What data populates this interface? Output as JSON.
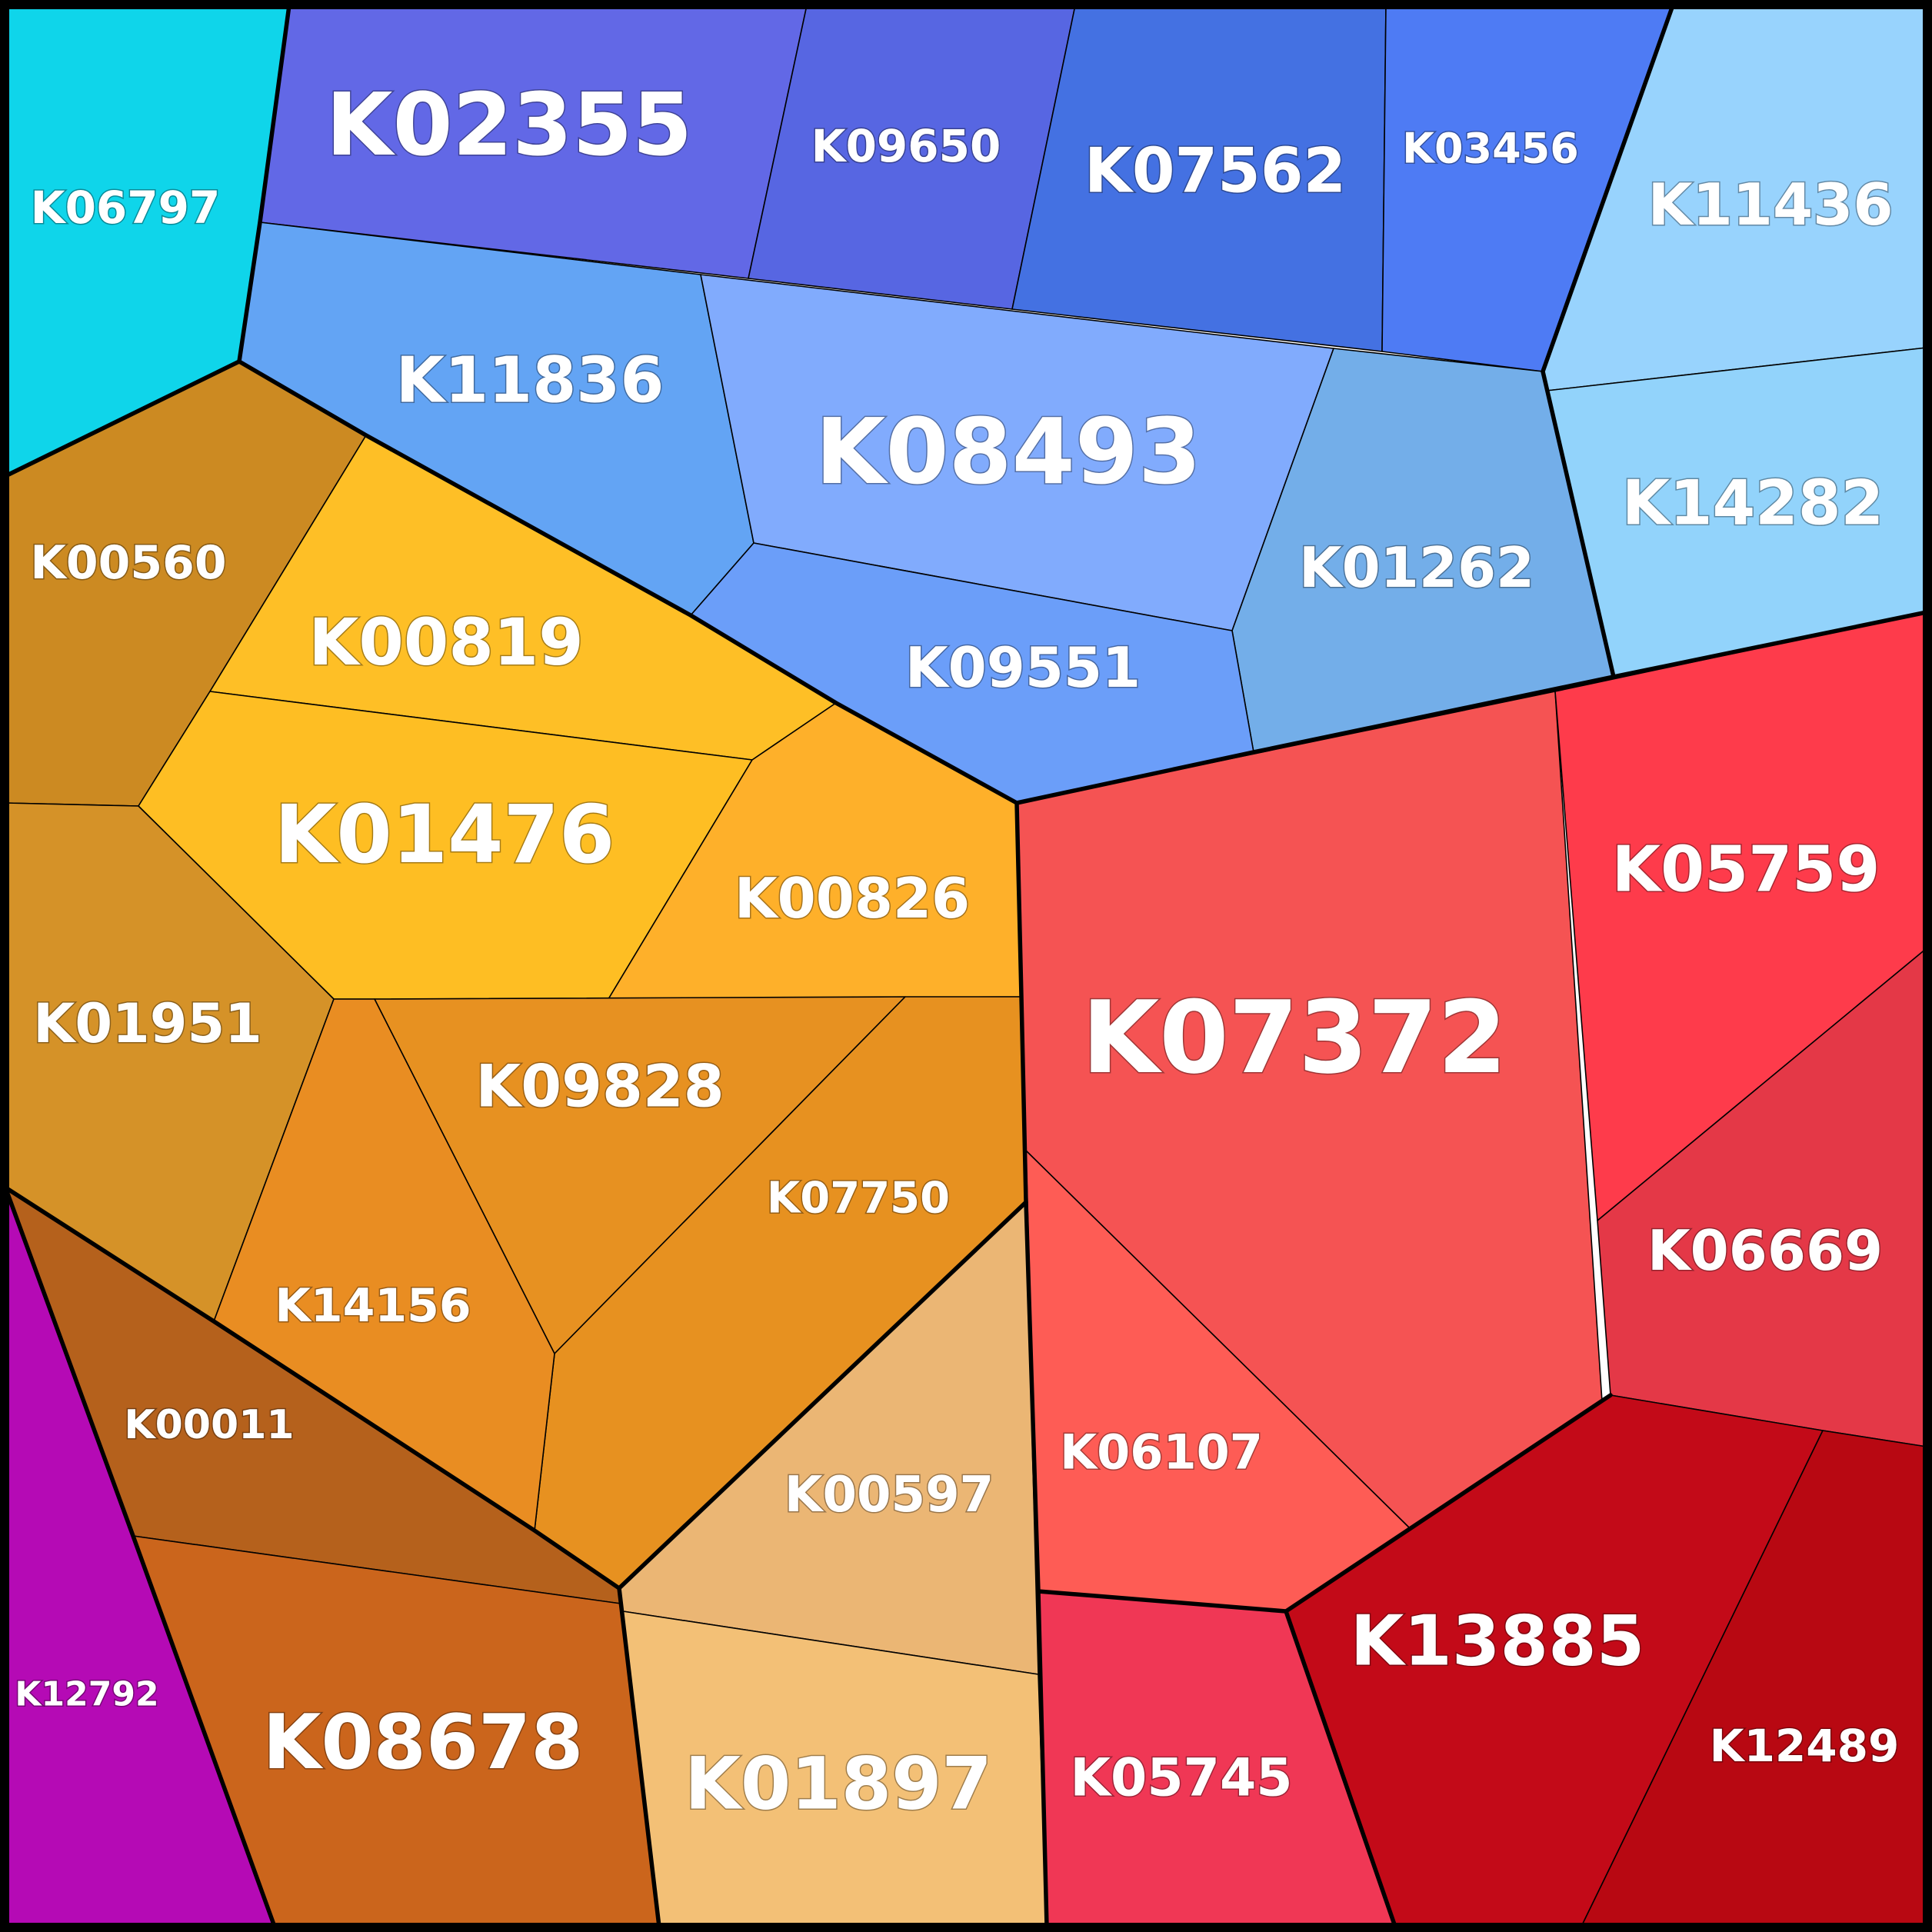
{
  "cells": [
    {
      "id": "K06797",
      "label": "K06797",
      "color": "#0fd5ea"
    },
    {
      "id": "K02355",
      "label": "K02355",
      "color": "#6268e6"
    },
    {
      "id": "K09650",
      "label": "K09650",
      "color": "#5766e2"
    },
    {
      "id": "K07562",
      "label": "K07562",
      "color": "#4471e2"
    },
    {
      "id": "K03456",
      "label": "K03456",
      "color": "#4e7bf4"
    },
    {
      "id": "K11436",
      "label": "K11436",
      "color": "#98d3fd"
    },
    {
      "id": "K11836",
      "label": "K11836",
      "color": "#63a4f4"
    },
    {
      "id": "K08493",
      "label": "K08493",
      "color": "#81abfd"
    },
    {
      "id": "K01262",
      "label": "K01262",
      "color": "#73aee9"
    },
    {
      "id": "K14282",
      "label": "K14282",
      "color": "#92d3fb"
    },
    {
      "id": "K09551",
      "label": "K09551",
      "color": "#6b9ef9"
    },
    {
      "id": "K00560",
      "label": "K00560",
      "color": "#cc8a22"
    },
    {
      "id": "K00819",
      "label": "K00819",
      "color": "#febf26"
    },
    {
      "id": "K01476",
      "label": "K01476",
      "color": "#febe23"
    },
    {
      "id": "K00826",
      "label": "K00826",
      "color": "#feb02a"
    },
    {
      "id": "K01951",
      "label": "K01951",
      "color": "#d59228"
    },
    {
      "id": "K09828",
      "label": "K09828",
      "color": "#e79121"
    },
    {
      "id": "K07750",
      "label": "K07750",
      "color": "#e79120"
    },
    {
      "id": "K14156",
      "label": "K14156",
      "color": "#e98d22"
    },
    {
      "id": "K00011",
      "label": "K00011",
      "color": "#b5611c"
    },
    {
      "id": "K12792",
      "label": "K12792",
      "color": "#b50ab5"
    },
    {
      "id": "K08678",
      "label": "K08678",
      "color": "#cb651c"
    },
    {
      "id": "K00597",
      "label": "K00597",
      "color": "#ebb674"
    },
    {
      "id": "K01897",
      "label": "K01897",
      "color": "#f3c076"
    },
    {
      "id": "K07372",
      "label": "K07372",
      "color": "#f55353"
    },
    {
      "id": "K05759",
      "label": "K05759",
      "color": "#fe3b4b"
    },
    {
      "id": "K06669",
      "label": "K06669",
      "color": "#e43847"
    },
    {
      "id": "K06107",
      "label": "K06107",
      "color": "#fe5c55"
    },
    {
      "id": "K05745",
      "label": "K05745",
      "color": "#f03755"
    },
    {
      "id": "K13885",
      "label": "K13885",
      "color": "#c30a18"
    },
    {
      "id": "K12489",
      "label": "K12489",
      "color": "#b80812"
    }
  ]
}
